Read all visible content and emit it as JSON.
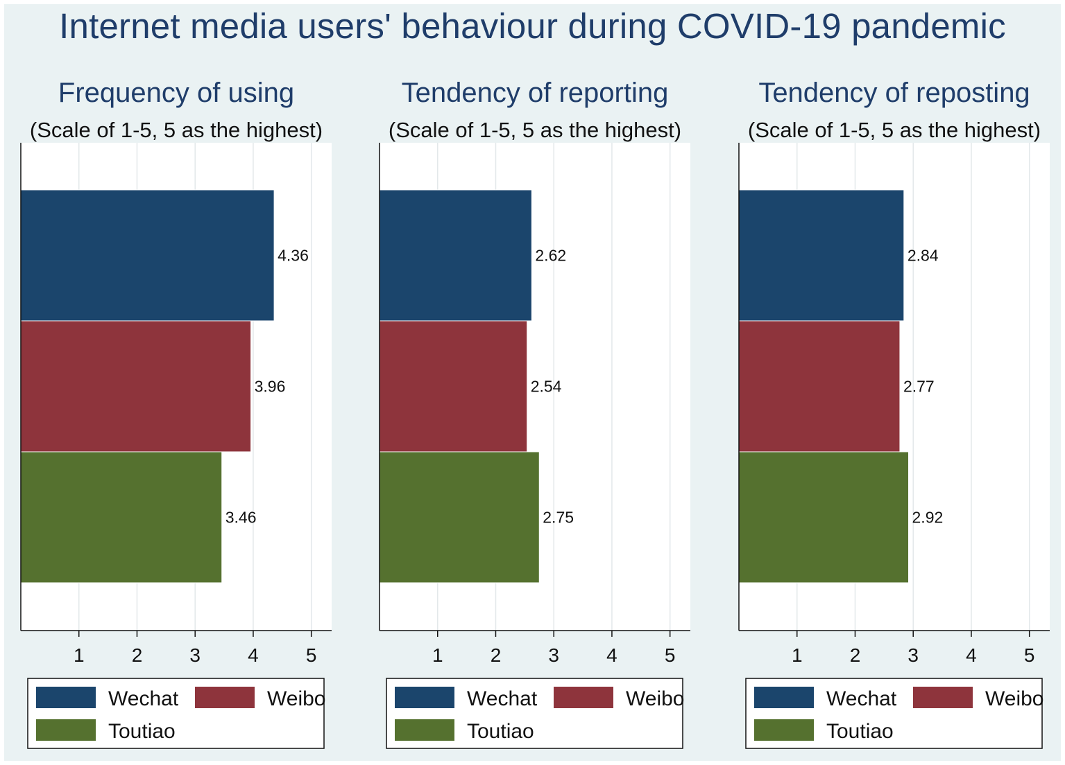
{
  "title": "Internet media users' behaviour during COVID-19 pandemic",
  "colors": {
    "background": "#eaf2f3",
    "title": "#1f3d6a",
    "Wechat": "#1b456c",
    "Weibo": "#8e343c",
    "Toutiao": "#55712f"
  },
  "chart_data": [
    {
      "type": "bar",
      "orientation": "horizontal",
      "title": "Frequency of using",
      "subtitle": "(Scale of 1-5,  5 as the highest)",
      "categories": [
        "Wechat",
        "Weibo",
        "Toutiao"
      ],
      "values": [
        4.36,
        3.96,
        3.46
      ],
      "value_labels": [
        "4.36",
        "3.96",
        "3.46"
      ],
      "xlim": [
        0,
        5.35
      ],
      "xticks": [
        "1",
        "2",
        "3",
        "4",
        "5"
      ],
      "grid": true,
      "legend": [
        "Wechat",
        "Weibo",
        "Toutiao"
      ],
      "legend_position": "bottom"
    },
    {
      "type": "bar",
      "orientation": "horizontal",
      "title": "Tendency of reporting",
      "subtitle": "(Scale of 1-5,  5 as the highest)",
      "categories": [
        "Wechat",
        "Weibo",
        "Toutiao"
      ],
      "values": [
        2.62,
        2.54,
        2.75
      ],
      "value_labels": [
        "2.62",
        "2.54",
        "2.75"
      ],
      "xlim": [
        0,
        5.35
      ],
      "xticks": [
        "1",
        "2",
        "3",
        "4",
        "5"
      ],
      "grid": true,
      "legend": [
        "Wechat",
        "Weibo",
        "Toutiao"
      ],
      "legend_position": "bottom"
    },
    {
      "type": "bar",
      "orientation": "horizontal",
      "title": "Tendency of reposting",
      "subtitle": "(Scale of 1-5,  5 as the highest)",
      "categories": [
        "Wechat",
        "Weibo",
        "Toutiao"
      ],
      "values": [
        2.84,
        2.77,
        2.92
      ],
      "value_labels": [
        "2.84",
        "2.77",
        "2.92"
      ],
      "xlim": [
        0,
        5.35
      ],
      "xticks": [
        "1",
        "2",
        "3",
        "4",
        "5"
      ],
      "grid": true,
      "legend": [
        "Wechat",
        "Weibo",
        "Toutiao"
      ],
      "legend_position": "bottom"
    }
  ]
}
